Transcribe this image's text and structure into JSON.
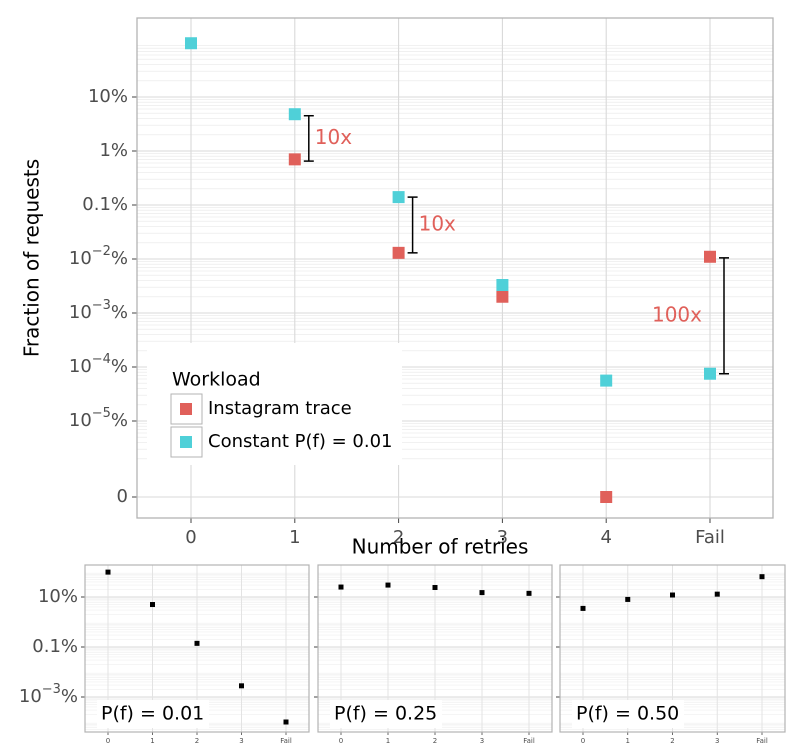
{
  "chart_data": [
    {
      "type": "scatter",
      "title": "",
      "xlabel": "Number of retries",
      "ylabel": "Fraction of requests",
      "scale": "log10 percent (bottom tick '0' = zero)",
      "categories": [
        "0",
        "1",
        "2",
        "3",
        "4",
        "Fail"
      ],
      "y_ticks": [
        {
          "label": "10%",
          "value": 10,
          "sup": null,
          "suffix": null
        },
        {
          "label": "1%",
          "value": 1,
          "sup": null,
          "suffix": null
        },
        {
          "label": "0.1%",
          "value": 0.1,
          "sup": null,
          "suffix": null
        },
        {
          "base": "10",
          "sup": "−2",
          "suffix": "%",
          "value": 0.01
        },
        {
          "base": "10",
          "sup": "−3",
          "suffix": "%",
          "value": 0.001
        },
        {
          "base": "10",
          "sup": "−4",
          "suffix": "%",
          "value": 0.0001
        },
        {
          "base": "10",
          "sup": "−5",
          "suffix": "%",
          "value": 1e-05
        },
        {
          "label": "0",
          "value": 0,
          "sup": null,
          "suffix": null
        }
      ],
      "legend": {
        "title": "Workload",
        "placement": "bottom-left",
        "entries": [
          "Instagram trace",
          "Constant P(f) = 0.01"
        ]
      },
      "series": [
        {
          "name": "Instagram trace",
          "color": "#E0605A",
          "values": [
            null,
            0.7,
            0.013,
            0.002,
            0,
            0.011
          ]
        },
        {
          "name": "Constant P(f) = 0.01",
          "color": "#4FD0D8",
          "values": [
            99,
            4.8,
            0.14,
            0.0033,
            5.6e-05,
            7.5e-05
          ]
        }
      ],
      "annotations": [
        {
          "label": "10x",
          "category": "1",
          "from": 4.5,
          "to": 0.65
        },
        {
          "label": "10x",
          "category": "2",
          "from": 0.14,
          "to": 0.013
        },
        {
          "label": "100x",
          "category": "Fail",
          "from": 0.0105,
          "to": 7.5e-05
        }
      ],
      "annotation_color": "#E0605A"
    },
    {
      "type": "scatter",
      "title": "P(f) = 0.01",
      "categories": [
        "0",
        "1",
        "2",
        "3",
        "Fail"
      ],
      "y_ticks": [
        {
          "label": "10%",
          "value": 10,
          "sup": null,
          "suffix": null
        },
        {
          "label": "0.1%",
          "value": 0.1,
          "sup": null,
          "suffix": null
        },
        {
          "base": "10",
          "sup": "−3",
          "suffix": "%",
          "value": 0.001
        }
      ],
      "series": [
        {
          "name": "P(f) = 0.01",
          "color": "#000000",
          "values": [
            99,
            5,
            0.14,
            0.0028,
            0.0001
          ]
        }
      ]
    },
    {
      "type": "scatter",
      "title": "P(f) = 0.25",
      "categories": [
        "0",
        "1",
        "2",
        "3",
        "Fail"
      ],
      "series": [
        {
          "name": "P(f) = 0.25",
          "color": "#000000",
          "values": [
            25,
            30,
            24,
            15,
            14
          ]
        }
      ]
    },
    {
      "type": "scatter",
      "title": "P(f) = 0.50",
      "categories": [
        "0",
        "1",
        "2",
        "3",
        "Fail"
      ],
      "series": [
        {
          "name": "P(f) = 0.50",
          "color": "#000000",
          "values": [
            3.5,
            8,
            12,
            13,
            65
          ]
        }
      ]
    }
  ]
}
